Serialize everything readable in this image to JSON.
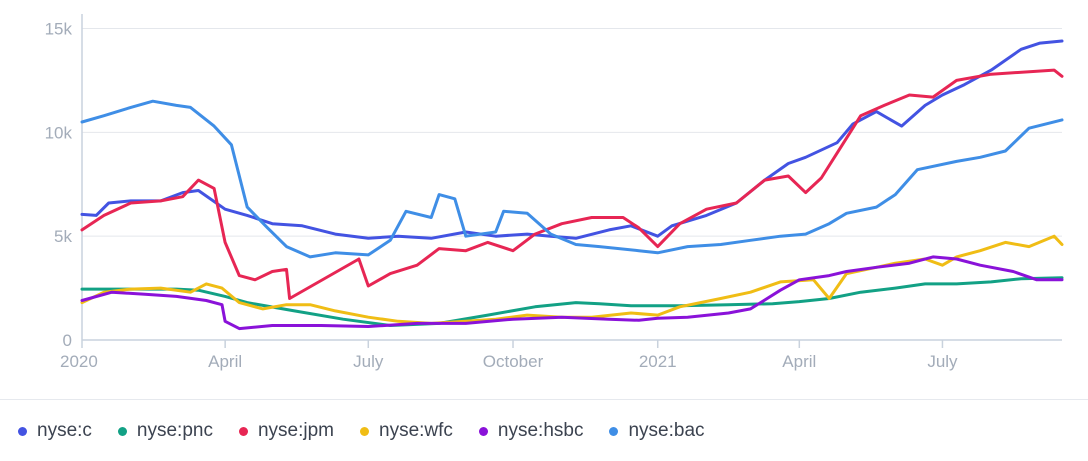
{
  "chart_data": {
    "type": "line",
    "xlabel": "",
    "ylabel": "",
    "x_ticks": [
      "2020",
      "April",
      "July",
      "October",
      "2021",
      "April",
      "July"
    ],
    "x_tick_dates": [
      "2020-01-01",
      "2020-04-01",
      "2020-07-01",
      "2020-10-01",
      "2021-01-01",
      "2021-04-01",
      "2021-07-01"
    ],
    "x_range": [
      "2020-01-01",
      "2021-09-15"
    ],
    "y_ticks": [
      "0",
      "5k",
      "10k",
      "15k"
    ],
    "y_tick_values": [
      0,
      5000,
      10000,
      15000
    ],
    "ylim": [
      0,
      15700
    ],
    "grid": "horizontal",
    "legend_position": "bottom",
    "series": [
      {
        "name": "nyse:c",
        "color": "#4353e2",
        "points": [
          [
            "2020-01-01",
            6050
          ],
          [
            "2020-01-10",
            6000
          ],
          [
            "2020-01-18",
            6600
          ],
          [
            "2020-02-01",
            6700
          ],
          [
            "2020-02-20",
            6700
          ],
          [
            "2020-03-05",
            7100
          ],
          [
            "2020-03-15",
            7200
          ],
          [
            "2020-04-01",
            6300
          ],
          [
            "2020-04-15",
            6000
          ],
          [
            "2020-05-01",
            5600
          ],
          [
            "2020-05-20",
            5500
          ],
          [
            "2020-06-10",
            5100
          ],
          [
            "2020-07-01",
            4900
          ],
          [
            "2020-07-20",
            5000
          ],
          [
            "2020-08-10",
            4900
          ],
          [
            "2020-09-01",
            5200
          ],
          [
            "2020-09-20",
            5000
          ],
          [
            "2020-10-10",
            5100
          ],
          [
            "2020-10-25",
            5000
          ],
          [
            "2020-11-10",
            4900
          ],
          [
            "2020-12-01",
            5300
          ],
          [
            "2020-12-15",
            5500
          ],
          [
            "2021-01-01",
            5000
          ],
          [
            "2021-01-10",
            5500
          ],
          [
            "2021-02-01",
            6000
          ],
          [
            "2021-02-20",
            6600
          ],
          [
            "2021-03-10",
            7700
          ],
          [
            "2021-03-25",
            8500
          ],
          [
            "2021-04-05",
            8800
          ],
          [
            "2021-04-25",
            9500
          ],
          [
            "2021-05-05",
            10400
          ],
          [
            "2021-05-20",
            11000
          ],
          [
            "2021-06-05",
            10300
          ],
          [
            "2021-06-20",
            11300
          ],
          [
            "2021-07-01",
            11800
          ],
          [
            "2021-07-15",
            12300
          ],
          [
            "2021-08-01",
            13000
          ],
          [
            "2021-08-20",
            14000
          ],
          [
            "2021-09-01",
            14300
          ],
          [
            "2021-09-15",
            14400
          ]
        ]
      },
      {
        "name": "nyse:pnc",
        "color": "#12a185",
        "points": [
          [
            "2020-01-01",
            2450
          ],
          [
            "2020-02-01",
            2450
          ],
          [
            "2020-03-01",
            2450
          ],
          [
            "2020-03-15",
            2400
          ],
          [
            "2020-04-01",
            2100
          ],
          [
            "2020-04-15",
            1800
          ],
          [
            "2020-05-15",
            1400
          ],
          [
            "2020-06-15",
            1000
          ],
          [
            "2020-07-15",
            700
          ],
          [
            "2020-08-15",
            800
          ],
          [
            "2020-09-15",
            1200
          ],
          [
            "2020-10-15",
            1600
          ],
          [
            "2020-11-10",
            1800
          ],
          [
            "2020-11-25",
            1750
          ],
          [
            "2020-12-15",
            1650
          ],
          [
            "2021-01-15",
            1650
          ],
          [
            "2021-02-15",
            1700
          ],
          [
            "2021-03-15",
            1750
          ],
          [
            "2021-04-01",
            1850
          ],
          [
            "2021-04-20",
            2000
          ],
          [
            "2021-05-10",
            2300
          ],
          [
            "2021-06-01",
            2500
          ],
          [
            "2021-06-20",
            2700
          ],
          [
            "2021-07-10",
            2700
          ],
          [
            "2021-08-01",
            2800
          ],
          [
            "2021-08-20",
            2950
          ],
          [
            "2021-09-15",
            3000
          ]
        ]
      },
      {
        "name": "nyse:jpm",
        "color": "#e72654",
        "points": [
          [
            "2020-01-01",
            5300
          ],
          [
            "2020-01-15",
            6000
          ],
          [
            "2020-02-01",
            6600
          ],
          [
            "2020-02-20",
            6700
          ],
          [
            "2020-03-05",
            6900
          ],
          [
            "2020-03-15",
            7700
          ],
          [
            "2020-03-25",
            7300
          ],
          [
            "2020-04-01",
            4700
          ],
          [
            "2020-04-10",
            3100
          ],
          [
            "2020-04-20",
            2900
          ],
          [
            "2020-05-01",
            3300
          ],
          [
            "2020-05-10",
            3400
          ],
          [
            "2020-05-12",
            2000
          ],
          [
            "2020-06-25",
            3900
          ],
          [
            "2020-07-01",
            2600
          ],
          [
            "2020-07-15",
            3200
          ],
          [
            "2020-08-01",
            3600
          ],
          [
            "2020-08-15",
            4400
          ],
          [
            "2020-09-01",
            4300
          ],
          [
            "2020-09-15",
            4700
          ],
          [
            "2020-10-01",
            4300
          ],
          [
            "2020-10-15",
            5100
          ],
          [
            "2020-11-01",
            5600
          ],
          [
            "2020-11-20",
            5900
          ],
          [
            "2020-12-10",
            5900
          ],
          [
            "2020-12-20",
            5400
          ],
          [
            "2021-01-01",
            4500
          ],
          [
            "2021-01-15",
            5600
          ],
          [
            "2021-02-01",
            6300
          ],
          [
            "2021-02-20",
            6600
          ],
          [
            "2021-03-10",
            7700
          ],
          [
            "2021-03-25",
            7900
          ],
          [
            "2021-04-05",
            7100
          ],
          [
            "2021-04-15",
            7800
          ],
          [
            "2021-04-25",
            9000
          ],
          [
            "2021-05-10",
            10800
          ],
          [
            "2021-05-25",
            11300
          ],
          [
            "2021-06-10",
            11800
          ],
          [
            "2021-06-25",
            11700
          ],
          [
            "2021-07-10",
            12500
          ],
          [
            "2021-08-01",
            12800
          ],
          [
            "2021-09-10",
            13000
          ],
          [
            "2021-09-15",
            12700
          ]
        ]
      },
      {
        "name": "nyse:wfc",
        "color": "#f0bd15",
        "points": [
          [
            "2020-01-01",
            1800
          ],
          [
            "2020-01-15",
            2300
          ],
          [
            "2020-02-01",
            2450
          ],
          [
            "2020-02-20",
            2500
          ],
          [
            "2020-03-10",
            2300
          ],
          [
            "2020-03-20",
            2700
          ],
          [
            "2020-03-30",
            2500
          ],
          [
            "2020-04-10",
            1800
          ],
          [
            "2020-04-25",
            1500
          ],
          [
            "2020-05-10",
            1700
          ],
          [
            "2020-05-25",
            1700
          ],
          [
            "2020-06-10",
            1400
          ],
          [
            "2020-07-01",
            1100
          ],
          [
            "2020-07-20",
            900
          ],
          [
            "2020-08-10",
            800
          ],
          [
            "2020-09-01",
            900
          ],
          [
            "2020-09-20",
            1000
          ],
          [
            "2020-10-10",
            1200
          ],
          [
            "2020-11-01",
            1100
          ],
          [
            "2020-11-20",
            1100
          ],
          [
            "2020-12-15",
            1300
          ],
          [
            "2021-01-01",
            1200
          ],
          [
            "2021-01-15",
            1600
          ],
          [
            "2021-02-10",
            2000
          ],
          [
            "2021-03-01",
            2300
          ],
          [
            "2021-03-20",
            2800
          ],
          [
            "2021-04-10",
            2900
          ],
          [
            "2021-04-20",
            2000
          ],
          [
            "2021-05-01",
            3200
          ],
          [
            "2021-05-20",
            3500
          ],
          [
            "2021-06-01",
            3700
          ],
          [
            "2021-06-20",
            3900
          ],
          [
            "2021-07-01",
            3600
          ],
          [
            "2021-07-10",
            4000
          ],
          [
            "2021-07-25",
            4300
          ],
          [
            "2021-08-10",
            4700
          ],
          [
            "2021-08-25",
            4500
          ],
          [
            "2021-09-10",
            5000
          ],
          [
            "2021-09-15",
            4600
          ]
        ]
      },
      {
        "name": "nyse:hsbc",
        "color": "#8a12d9",
        "points": [
          [
            "2020-01-01",
            1900
          ],
          [
            "2020-01-20",
            2300
          ],
          [
            "2020-02-10",
            2200
          ],
          [
            "2020-03-01",
            2100
          ],
          [
            "2020-03-20",
            1900
          ],
          [
            "2020-03-30",
            1700
          ],
          [
            "2020-04-01",
            900
          ],
          [
            "2020-04-10",
            550
          ],
          [
            "2020-05-01",
            700
          ],
          [
            "2020-06-01",
            700
          ],
          [
            "2020-07-01",
            650
          ],
          [
            "2020-08-01",
            800
          ],
          [
            "2020-09-01",
            800
          ],
          [
            "2020-10-01",
            1000
          ],
          [
            "2020-11-01",
            1100
          ],
          [
            "2020-12-01",
            1000
          ],
          [
            "2020-12-20",
            950
          ],
          [
            "2021-01-01",
            1050
          ],
          [
            "2021-01-20",
            1100
          ],
          [
            "2021-02-15",
            1300
          ],
          [
            "2021-03-01",
            1500
          ],
          [
            "2021-03-20",
            2400
          ],
          [
            "2021-04-01",
            2900
          ],
          [
            "2021-04-20",
            3100
          ],
          [
            "2021-05-01",
            3300
          ],
          [
            "2021-05-20",
            3500
          ],
          [
            "2021-06-10",
            3700
          ],
          [
            "2021-06-25",
            4000
          ],
          [
            "2021-07-10",
            3900
          ],
          [
            "2021-07-25",
            3600
          ],
          [
            "2021-08-15",
            3300
          ],
          [
            "2021-08-30",
            2900
          ],
          [
            "2021-09-15",
            2900
          ]
        ]
      },
      {
        "name": "nyse:bac",
        "color": "#3f8ee6",
        "points": [
          [
            "2020-01-01",
            10500
          ],
          [
            "2020-01-15",
            10800
          ],
          [
            "2020-02-01",
            11200
          ],
          [
            "2020-02-15",
            11500
          ],
          [
            "2020-03-01",
            11300
          ],
          [
            "2020-03-10",
            11200
          ],
          [
            "2020-03-25",
            10300
          ],
          [
            "2020-04-05",
            9400
          ],
          [
            "2020-04-15",
            6400
          ],
          [
            "2020-04-28",
            5400
          ],
          [
            "2020-05-10",
            4500
          ],
          [
            "2020-05-25",
            4000
          ],
          [
            "2020-06-10",
            4200
          ],
          [
            "2020-07-01",
            4100
          ],
          [
            "2020-07-15",
            4800
          ],
          [
            "2020-07-25",
            6200
          ],
          [
            "2020-08-10",
            5900
          ],
          [
            "2020-08-15",
            7000
          ],
          [
            "2020-08-25",
            6800
          ],
          [
            "2020-09-01",
            5000
          ],
          [
            "2020-09-20",
            5200
          ],
          [
            "2020-09-25",
            6200
          ],
          [
            "2020-10-10",
            6100
          ],
          [
            "2020-10-25",
            5100
          ],
          [
            "2020-11-10",
            4600
          ],
          [
            "2020-11-25",
            4500
          ],
          [
            "2020-12-20",
            4300
          ],
          [
            "2021-01-01",
            4200
          ],
          [
            "2021-01-20",
            4500
          ],
          [
            "2021-02-10",
            4600
          ],
          [
            "2021-03-01",
            4800
          ],
          [
            "2021-03-20",
            5000
          ],
          [
            "2021-04-05",
            5100
          ],
          [
            "2021-04-20",
            5600
          ],
          [
            "2021-05-01",
            6100
          ],
          [
            "2021-05-20",
            6400
          ],
          [
            "2021-06-01",
            7000
          ],
          [
            "2021-06-15",
            8200
          ],
          [
            "2021-07-10",
            8600
          ],
          [
            "2021-07-25",
            8800
          ],
          [
            "2021-08-10",
            9100
          ],
          [
            "2021-08-25",
            10200
          ],
          [
            "2021-09-15",
            10600
          ]
        ]
      }
    ]
  }
}
